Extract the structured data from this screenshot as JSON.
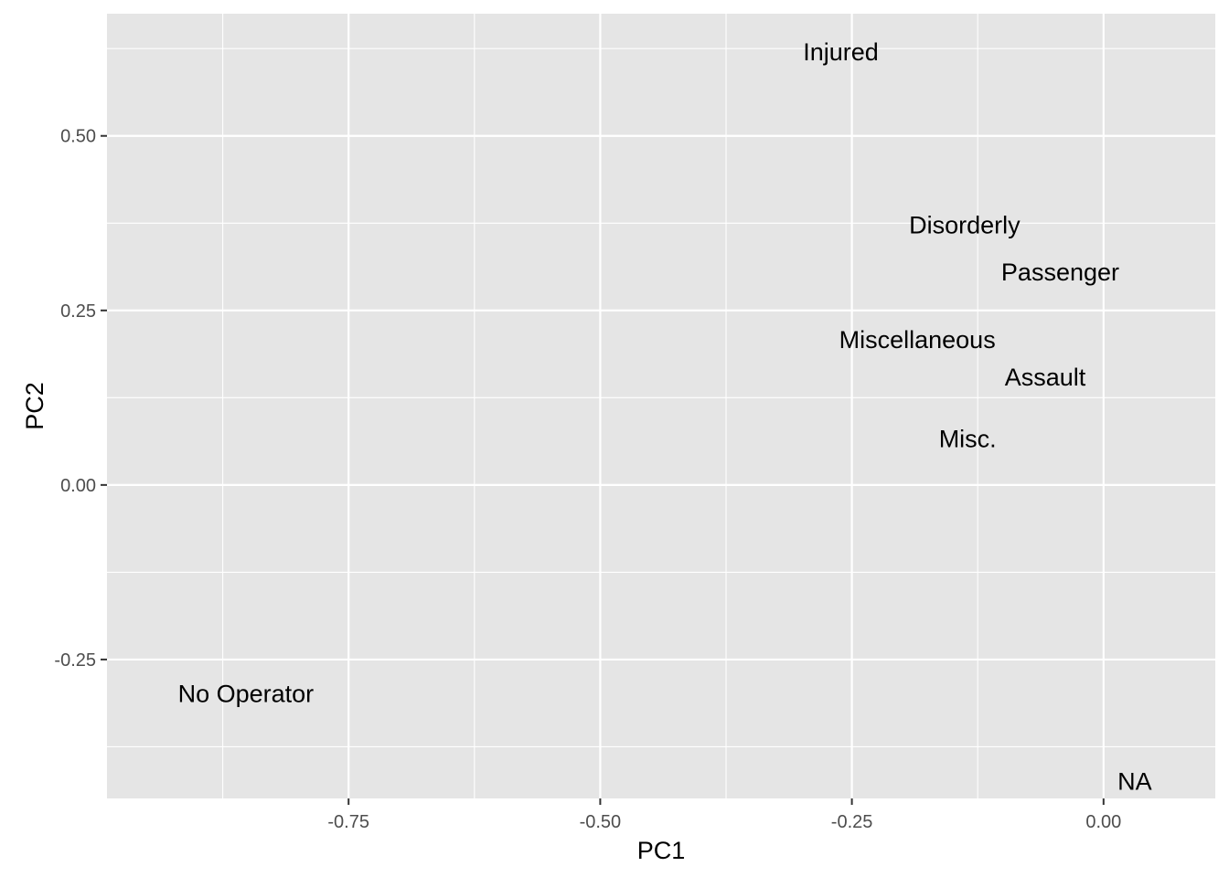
{
  "chart_data": {
    "type": "scatter",
    "title": "",
    "xlabel": "PC1",
    "ylabel": "PC2",
    "xlim": [
      -0.99,
      0.111
    ],
    "ylim": [
      -0.449,
      0.675
    ],
    "x_ticks": [
      -0.75,
      -0.5,
      -0.25,
      0.0
    ],
    "x_tick_labels": [
      "-0.75",
      "-0.50",
      "-0.25",
      "0.00"
    ],
    "y_ticks": [
      -0.25,
      0.0,
      0.25,
      0.5
    ],
    "y_tick_labels": [
      "-0.25",
      "0.00",
      "0.25",
      "0.50"
    ],
    "grid": true,
    "legend": "none",
    "colors": {
      "panel": "#e5e5e5",
      "grid": "#ffffff",
      "text": "#000000",
      "tick_text": "#4d4d4d",
      "tick_mark": "#333333"
    },
    "points": [
      {
        "label": "Injured",
        "x": -0.261,
        "y": 0.62
      },
      {
        "label": "Disorderly",
        "x": -0.138,
        "y": 0.372
      },
      {
        "label": "Passenger",
        "x": -0.043,
        "y": 0.305
      },
      {
        "label": "Miscellaneous",
        "x": -0.185,
        "y": 0.208
      },
      {
        "label": "Assault",
        "x": -0.058,
        "y": 0.154
      },
      {
        "label": "Misc.",
        "x": -0.135,
        "y": 0.066
      },
      {
        "label": "No Operator",
        "x": -0.852,
        "y": -0.299
      },
      {
        "label": "NA",
        "x": 0.031,
        "y": -0.425
      }
    ]
  }
}
